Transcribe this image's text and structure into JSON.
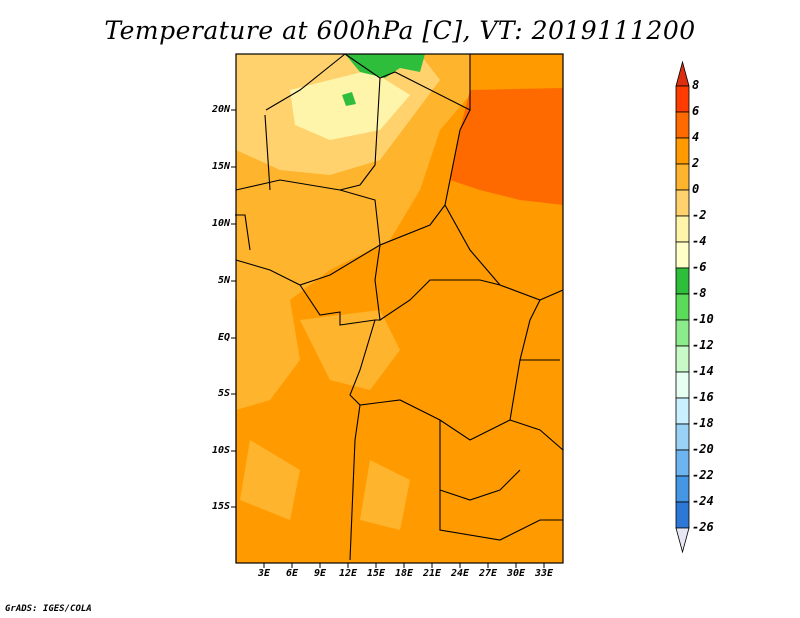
{
  "title": "Temperature at 600hPa [C], VT: 2019111200",
  "latitude_labels": [
    "20N",
    "15N",
    "10N",
    "5N",
    "EQ",
    "5S",
    "10S",
    "15S"
  ],
  "longitude_labels": [
    "3E",
    "6E",
    "9E",
    "12E",
    "15E",
    "18E",
    "21E",
    "24E",
    "27E",
    "30E",
    "33E"
  ],
  "colorbar": {
    "labels": [
      "8",
      "6",
      "4",
      "2",
      "0",
      "-2",
      "-4",
      "-6",
      "-8",
      "-10",
      "-12",
      "-14",
      "-16",
      "-18",
      "-20",
      "-22",
      "-24",
      "-26"
    ],
    "colors": [
      "#dc2f0f",
      "#ff3c00",
      "#ff6a00",
      "#ff9b00",
      "#ffb42e",
      "#ffd26e",
      "#fff5aa",
      "#ffffc8",
      "#2ebe3c",
      "#5adc5a",
      "#8cec8c",
      "#c8fac8",
      "#e6fff2",
      "#c8f0ff",
      "#9ad2f5",
      "#6eb4f0",
      "#4696e6",
      "#2d78d7",
      "#1e5ac8",
      "#143cb4",
      "#0a1e8c",
      "#e6e6f5"
    ]
  },
  "credit": "GrADS: IGES/COLA"
}
